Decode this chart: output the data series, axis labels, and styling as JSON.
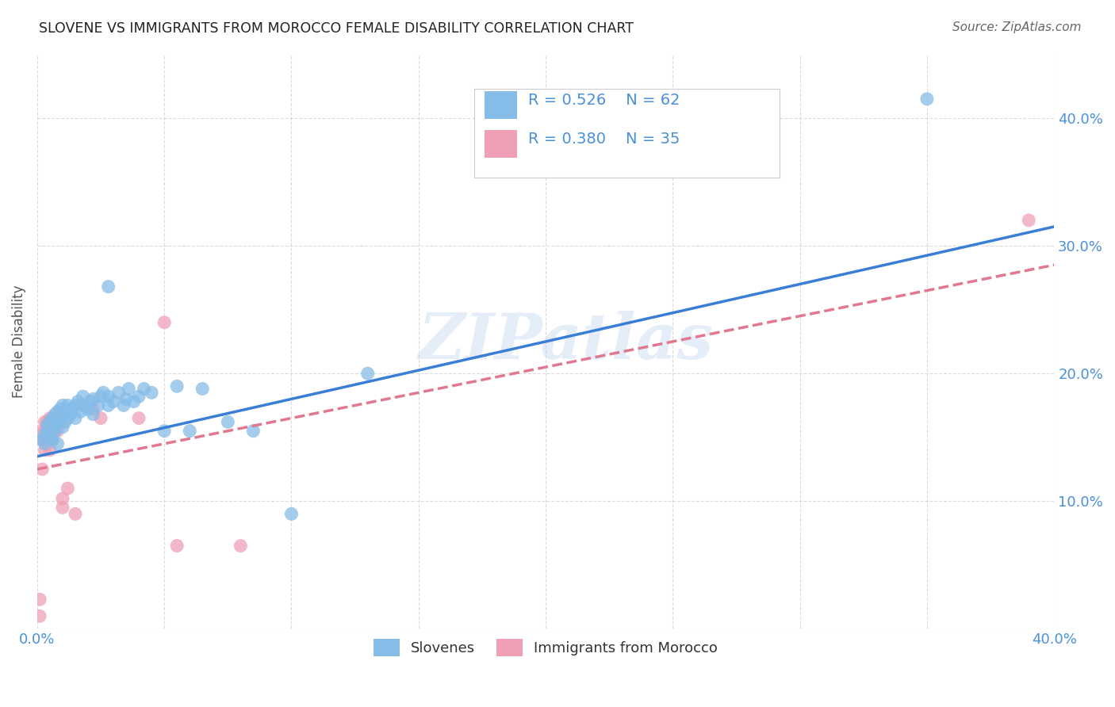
{
  "title": "SLOVENE VS IMMIGRANTS FROM MOROCCO FEMALE DISABILITY CORRELATION CHART",
  "source": "Source: ZipAtlas.com",
  "ylabel": "Female Disability",
  "xlim": [
    0.0,
    0.4
  ],
  "ylim": [
    0.0,
    0.45
  ],
  "ytick_vals": [
    0.0,
    0.1,
    0.2,
    0.3,
    0.4
  ],
  "ytick_labels": [
    "",
    "10.0%",
    "20.0%",
    "30.0%",
    "40.0%"
  ],
  "xtick_vals": [
    0.0,
    0.05,
    0.1,
    0.15,
    0.2,
    0.25,
    0.3,
    0.35,
    0.4
  ],
  "xtick_labels": [
    "0.0%",
    "",
    "",
    "",
    "",
    "",
    "",
    "",
    "40.0%"
  ],
  "watermark": "ZIPatlas",
  "blue_color": "#85bce8",
  "pink_color": "#f0a0b5",
  "blue_line_color": "#3a7fd5",
  "pink_line_color": "#e07890",
  "axis_color": "#4a90d9",
  "blue_line": {
    "x0": 0.0,
    "y0": 0.135,
    "x1": 0.4,
    "y1": 0.315
  },
  "pink_line": {
    "x0": 0.0,
    "y0": 0.125,
    "x1": 0.4,
    "y1": 0.285
  },
  "slovene_points": [
    [
      0.002,
      0.148
    ],
    [
      0.003,
      0.152
    ],
    [
      0.003,
      0.145
    ],
    [
      0.004,
      0.155
    ],
    [
      0.004,
      0.16
    ],
    [
      0.005,
      0.15
    ],
    [
      0.005,
      0.158
    ],
    [
      0.005,
      0.162
    ],
    [
      0.006,
      0.155
    ],
    [
      0.006,
      0.165
    ],
    [
      0.006,
      0.148
    ],
    [
      0.007,
      0.16
    ],
    [
      0.007,
      0.168
    ],
    [
      0.007,
      0.155
    ],
    [
      0.008,
      0.162
    ],
    [
      0.008,
      0.17
    ],
    [
      0.008,
      0.145
    ],
    [
      0.009,
      0.165
    ],
    [
      0.009,
      0.172
    ],
    [
      0.01,
      0.158
    ],
    [
      0.01,
      0.168
    ],
    [
      0.01,
      0.175
    ],
    [
      0.011,
      0.162
    ],
    [
      0.011,
      0.17
    ],
    [
      0.012,
      0.165
    ],
    [
      0.012,
      0.175
    ],
    [
      0.013,
      0.168
    ],
    [
      0.014,
      0.172
    ],
    [
      0.015,
      0.175
    ],
    [
      0.015,
      0.165
    ],
    [
      0.016,
      0.178
    ],
    [
      0.017,
      0.17
    ],
    [
      0.018,
      0.175
    ],
    [
      0.018,
      0.182
    ],
    [
      0.02,
      0.172
    ],
    [
      0.021,
      0.178
    ],
    [
      0.022,
      0.168
    ],
    [
      0.022,
      0.18
    ],
    [
      0.024,
      0.175
    ],
    [
      0.025,
      0.182
    ],
    [
      0.026,
      0.185
    ],
    [
      0.028,
      0.175
    ],
    [
      0.028,
      0.182
    ],
    [
      0.028,
      0.268
    ],
    [
      0.03,
      0.178
    ],
    [
      0.032,
      0.185
    ],
    [
      0.034,
      0.175
    ],
    [
      0.035,
      0.18
    ],
    [
      0.036,
      0.188
    ],
    [
      0.038,
      0.178
    ],
    [
      0.04,
      0.182
    ],
    [
      0.042,
      0.188
    ],
    [
      0.045,
      0.185
    ],
    [
      0.05,
      0.155
    ],
    [
      0.055,
      0.19
    ],
    [
      0.06,
      0.155
    ],
    [
      0.065,
      0.188
    ],
    [
      0.075,
      0.162
    ],
    [
      0.085,
      0.155
    ],
    [
      0.1,
      0.09
    ],
    [
      0.13,
      0.2
    ],
    [
      0.35,
      0.415
    ]
  ],
  "morocco_points": [
    [
      0.001,
      0.01
    ],
    [
      0.001,
      0.023
    ],
    [
      0.002,
      0.148
    ],
    [
      0.002,
      0.155
    ],
    [
      0.002,
      0.125
    ],
    [
      0.003,
      0.155
    ],
    [
      0.003,
      0.162
    ],
    [
      0.003,
      0.148
    ],
    [
      0.003,
      0.14
    ],
    [
      0.004,
      0.152
    ],
    [
      0.004,
      0.158
    ],
    [
      0.004,
      0.162
    ],
    [
      0.004,
      0.145
    ],
    [
      0.005,
      0.155
    ],
    [
      0.005,
      0.165
    ],
    [
      0.005,
      0.14
    ],
    [
      0.006,
      0.158
    ],
    [
      0.006,
      0.148
    ],
    [
      0.006,
      0.162
    ],
    [
      0.007,
      0.155
    ],
    [
      0.007,
      0.165
    ],
    [
      0.008,
      0.16
    ],
    [
      0.008,
      0.155
    ],
    [
      0.009,
      0.165
    ],
    [
      0.01,
      0.095
    ],
    [
      0.01,
      0.102
    ],
    [
      0.012,
      0.11
    ],
    [
      0.015,
      0.09
    ],
    [
      0.022,
      0.172
    ],
    [
      0.025,
      0.165
    ],
    [
      0.04,
      0.165
    ],
    [
      0.05,
      0.24
    ],
    [
      0.055,
      0.065
    ],
    [
      0.08,
      0.065
    ],
    [
      0.39,
      0.32
    ]
  ]
}
